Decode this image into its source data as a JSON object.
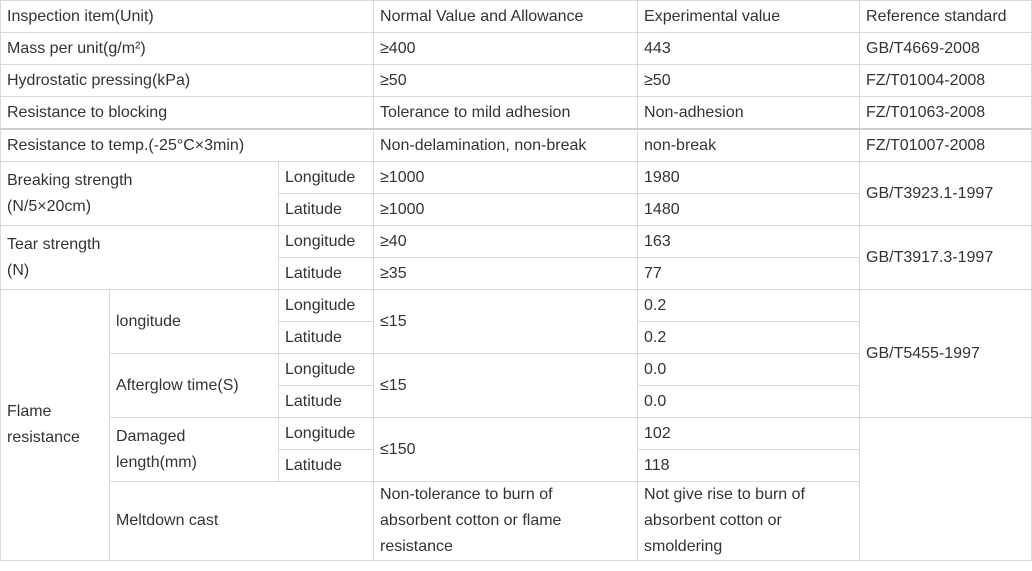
{
  "table": {
    "header": {
      "item": "Inspection item(Unit)",
      "normal": "Normal Value and Allowance",
      "experimental": "Experimental value",
      "standard": "Reference standard"
    },
    "mass": {
      "label": "Mass per unit(g/m²)",
      "normal": "≥400",
      "value": "443",
      "standard": "GB/T4669-2008"
    },
    "hydro": {
      "label": "Hydrostatic pressing(kPa)",
      "normal": "≥50",
      "value": "≥50",
      "standard": "FZ/T01004-2008"
    },
    "blocking": {
      "label": "Resistance to blocking",
      "normal": "Tolerance to mild adhesion",
      "value": "Non-adhesion",
      "standard": "FZ/T01063-2008"
    },
    "temp": {
      "label": "Resistance to temp.(-25°C×3min)",
      "normal": "Non-delamination, non-break",
      "value": "non-break",
      "standard": "FZ/T01007-2008"
    },
    "breaking": {
      "label_line1": "Breaking strength",
      "label_line2": "(N/5×20cm)",
      "rows": [
        {
          "dir": "Longitude",
          "normal": "≥1000",
          "value": "1980"
        },
        {
          "dir": "Latitude",
          "normal": "≥1000",
          "value": "1480"
        }
      ],
      "standard": "GB/T3923.1-1997"
    },
    "tear": {
      "label_line1": "Tear strength",
      "label_line2": "(N)",
      "rows": [
        {
          "dir": "Longitude",
          "normal": "≥40",
          "value": "163"
        },
        {
          "dir": "Latitude",
          "normal": "≥35",
          "value": "77"
        }
      ],
      "standard": "GB/T3917.3-1997"
    },
    "flame": {
      "label_line1": "Flame",
      "label_line2": "resistance",
      "standard": "GB/T5455-1997",
      "longitude": {
        "label": "longitude",
        "normal": "≤15",
        "rows": [
          {
            "dir": "Longitude",
            "value": "0.2"
          },
          {
            "dir": "Latitude",
            "value": "0.2"
          }
        ]
      },
      "afterglow": {
        "label": "Afterglow time(S)",
        "normal": "≤15",
        "rows": [
          {
            "dir": "Longitude",
            "value": "0.0"
          },
          {
            "dir": "Latitude",
            "value": "0.0"
          }
        ]
      },
      "damaged": {
        "label_line1": "Damaged",
        "label_line2": "length(mm)",
        "normal": "≤150",
        "rows": [
          {
            "dir": "Longitude",
            "value": "102"
          },
          {
            "dir": "Latitude",
            "value": "118"
          }
        ]
      },
      "meltdown": {
        "label": "Meltdown cast",
        "normal_lines": [
          "Non-tolerance to burn of",
          "absorbent cotton or flame",
          "resistance"
        ],
        "value_lines": [
          "Not give rise to burn of",
          "absorbent cotton or",
          "smoldering"
        ]
      }
    }
  }
}
